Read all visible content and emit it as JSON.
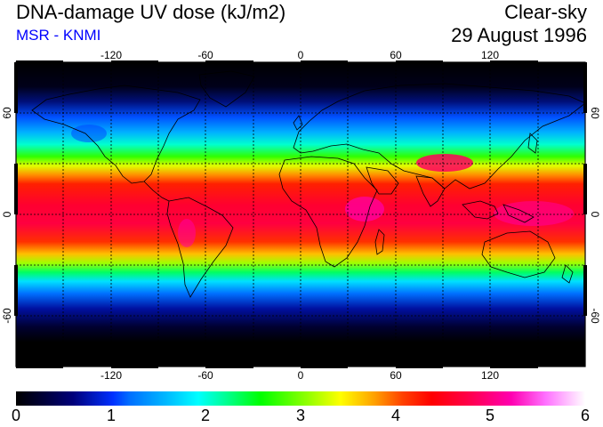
{
  "title": "DNA-damage UV dose (kJ/m2)",
  "subtitle": "MSR - KNMI",
  "sky_condition": "Clear-sky",
  "date": "29 August 1996",
  "colors": {
    "subtitle": "#0000ff",
    "grid": "#000000",
    "coast": "#000000"
  },
  "map": {
    "lon_ticks": [
      "-120",
      "-60",
      "0",
      "60",
      "120"
    ],
    "lat_ticks_left": [
      "60",
      "0",
      "-60"
    ],
    "lat_ticks_right": [
      "60",
      "0",
      "-60"
    ]
  },
  "colorbar": {
    "labels": [
      "0",
      "1",
      "2",
      "3",
      "4",
      "5",
      "6"
    ],
    "min": 0,
    "max": 6
  }
}
